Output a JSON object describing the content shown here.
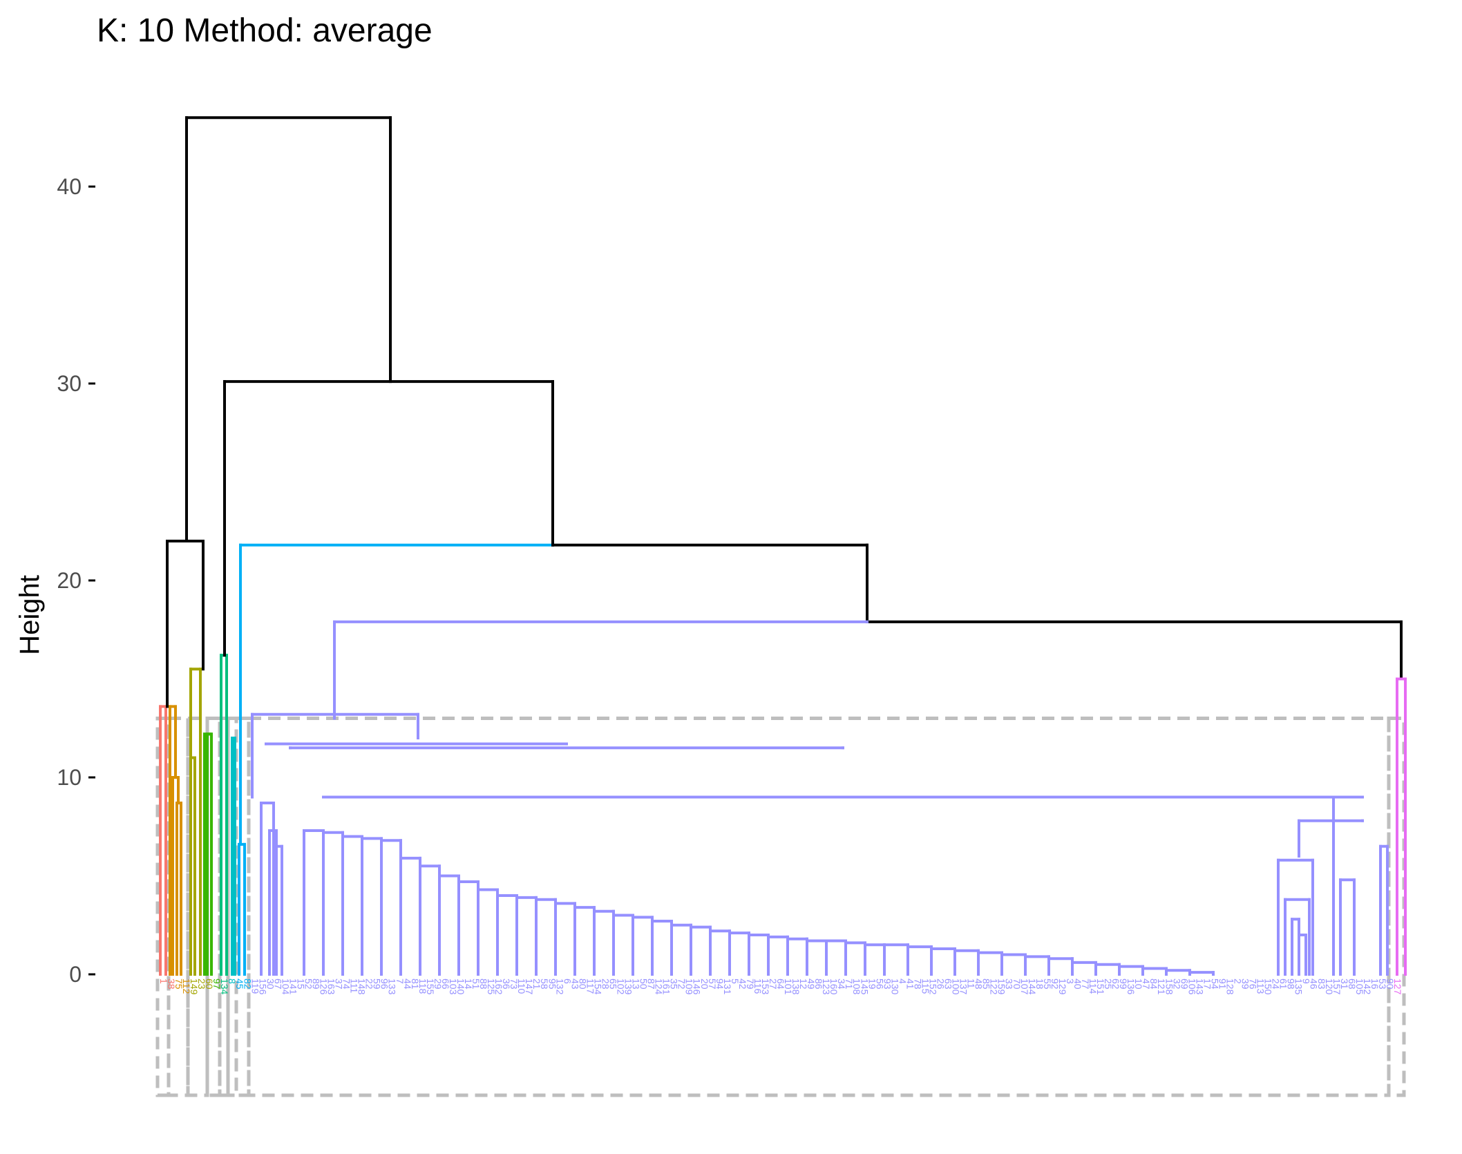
{
  "chart_data": {
    "type": "dendrogram",
    "title": "K: 10  Method: average",
    "ylabel": "Height",
    "ylim": [
      0,
      43.5
    ],
    "yticks": [
      0,
      10,
      20,
      30,
      40
    ],
    "grid": false,
    "k": 10,
    "method": "average",
    "colors": {
      "trunk": "#000000",
      "c1": "#F8766D",
      "c2": "#D89000",
      "c3": "#A3A500",
      "c4": "#39B600",
      "c5": "#00BF7D",
      "c6": "#00BFC4",
      "c7": "#00B0F6",
      "c8": "#9590FF",
      "c9": "#E76BF3",
      "c10": "#FF62BC",
      "box": "#BEBEBE"
    },
    "merges": [
      {
        "left": [
          0,
          2.1
        ],
        "right": [
          2,
          13.6
        ],
        "height": 22.0,
        "color": "trunk"
      },
      {
        "left": [
          0,
          22.0
        ],
        "right": [
          0,
          30.1
        ],
        "height": 43.5,
        "color": "trunk"
      },
      {
        "left": [
          0,
          16.2
        ],
        "right": [
          0,
          21.8
        ],
        "height": 30.1,
        "color": "trunk"
      },
      {
        "left": [
          0,
          21.8
        ],
        "right": [
          0,
          17.9
        ],
        "height": 21.8,
        "color": "trunk"
      },
      {
        "left": [
          0,
          13.0
        ],
        "right": [
          0,
          15.0
        ],
        "height": 17.9,
        "color": "c8"
      },
      {
        "left": [
          0,
          13.6
        ],
        "right": [
          0,
          15.5
        ],
        "height": 22.0,
        "color": "trunk"
      }
    ],
    "leaf_count": 163
  }
}
